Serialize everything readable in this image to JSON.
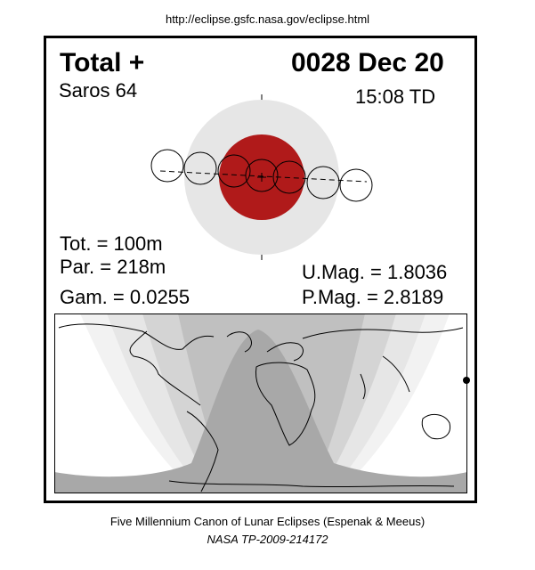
{
  "source_url": "http://eclipse.gsfc.nasa.gov/eclipse.html",
  "header": {
    "eclipse_type": "Total  +",
    "date": "0028 Dec 20",
    "saros": "Saros  64",
    "time": "15:08 TD"
  },
  "stats": {
    "total_duration": "Tot. = 100m",
    "partial_duration": "Par. = 218m",
    "gamma": "Gam. = 0.0255",
    "umbral_magnitude": "U.Mag. = 1.8036",
    "penumbral_magnitude": "P.Mag. = 2.8189"
  },
  "footer": {
    "canon": "Five Millennium Canon of Lunar Eclipses (Espenak & Meeus)",
    "publication": "NASA TP-2009-214172"
  },
  "colors": {
    "umbra": "#b01a1a",
    "penumbra": "#e6e6e6",
    "visibility_total": "#a8a8a8",
    "visibility_zone_1": "#c0c0c0",
    "visibility_zone_2": "#d4d4d4",
    "visibility_zone_3": "#e6e6e6",
    "visibility_zone_4": "#f2f2f2"
  }
}
